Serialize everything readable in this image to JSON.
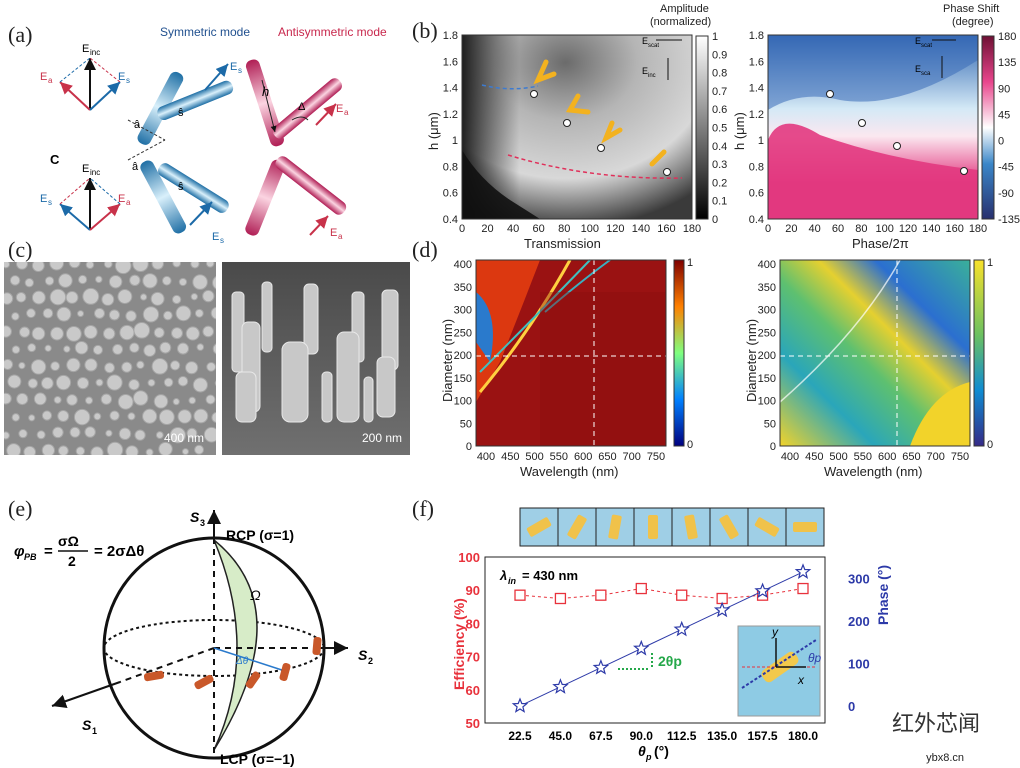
{
  "labels": {
    "a": "(a)",
    "b": "(b)",
    "c": "(c)",
    "d": "(d)",
    "e": "(e)",
    "f": "(f)"
  },
  "panel_a": {
    "symmetric_title": "Symmetric mode",
    "antisymmetric_title": "Antisymmetric mode",
    "e_inc": "E",
    "e_inc_sub": "inc",
    "e_a": "E",
    "e_a_sub": "a",
    "e_s": "E",
    "e_s_sub": "s",
    "c_label": "C",
    "a_hat": "â",
    "s_hat": "ŝ",
    "h": "h",
    "delta": "Δ",
    "colors": {
      "symmetric": "#3a8fc4",
      "antisymmetric": "#cc2a62"
    }
  },
  "panel_b": {
    "amp_title": "Amplitude",
    "amp_subtitle": "(normalized)",
    "phase_title": "Phase Shift",
    "phase_subtitle": "(degree)",
    "ylabel": "h (μm)",
    "yticks": [
      "1.8",
      "1.6",
      "1.4",
      "1.2",
      "1",
      "0.8",
      "0.6",
      "0.4"
    ],
    "xticks": [
      "0",
      "20",
      "40",
      "60",
      "80",
      "100",
      "120",
      "140",
      "160",
      "180"
    ],
    "amp_cbar": [
      "1",
      "0.9",
      "0.8",
      "0.7",
      "0.6",
      "0.5",
      "0.4",
      "0.3",
      "0.2",
      "0.1",
      "0"
    ],
    "phase_cbar": [
      "180",
      "135",
      "90",
      "45",
      "0",
      "-45",
      "-90",
      "-135"
    ],
    "e_scat": "E",
    "e_scat_sub": "scat",
    "e_inc": "E",
    "e_inc_sub": "inc",
    "e_sca_sub": "sca"
  },
  "panel_c": {
    "scale1": "400 nm",
    "scale2": "200 nm"
  },
  "panel_d": {
    "title_left": "Transmission",
    "title_right": "Phase/2π",
    "ylabel": "Diameter (nm)",
    "xlabel": "Wavelength (nm)",
    "yticks": [
      "400",
      "350",
      "300",
      "250",
      "200",
      "150",
      "100",
      "50",
      "0"
    ],
    "xticks": [
      "400",
      "450",
      "500",
      "550",
      "600",
      "650",
      "700",
      "750"
    ],
    "cbar_top": "1",
    "cbar_bottom": "0"
  },
  "panel_e": {
    "formula_lhs": "φ",
    "formula_sub": "PB",
    "formula": "= σΩ/2 = 2σΔθ",
    "formula_num": "σΩ",
    "formula_den": "2",
    "formula_rhs": "= 2σΔθ",
    "s1": "S",
    "s1_sub": "1",
    "s2": "S",
    "s2_sub": "2",
    "s3": "S",
    "s3_sub": "3",
    "rcp": "RCP (σ=1)",
    "lcp": "LCP (σ=−1)",
    "omega": "Ω",
    "dtheta": "Δθ"
  },
  "chart_data": {
    "type": "line",
    "annotation": "λin = 430 nm",
    "annotation_sym": "λ",
    "annotation_sub": "in",
    "annotation_val": "= 430 nm",
    "xlabel": "θp (°)",
    "xlabel_sym": "θ",
    "xlabel_sub": "p",
    "xlabel_unit": "(°)",
    "ylabel_left": "Efficiency (%)",
    "ylabel_right": "Phase (°)",
    "categories": [
      "22.5",
      "45.0",
      "67.5",
      "90.0",
      "112.5",
      "135.0",
      "157.5",
      "180.0"
    ],
    "ylim_left": [
      50,
      100
    ],
    "ylim_right": [
      -40,
      350
    ],
    "yticks_left": [
      "100",
      "90",
      "80",
      "70",
      "60",
      "50"
    ],
    "yticks_right": [
      "300",
      "200",
      "100",
      "0"
    ],
    "series": [
      {
        "axis": "left",
        "marker": "square",
        "color": "#e8323c",
        "values": [
          88.5,
          87.5,
          88.5,
          90.5,
          88.5,
          87.5,
          88.5,
          90.5
        ]
      },
      {
        "axis": "right",
        "marker": "star",
        "color": "#2d3aa8",
        "values": [
          0,
          45,
          90,
          135,
          180,
          225,
          270,
          315
        ]
      }
    ],
    "two_theta": "2θp",
    "inset_x": "x",
    "inset_y": "y",
    "inset_theta": "θp"
  },
  "watermark": {
    "brand": "红外芯闻",
    "site": "ybx8.cn"
  }
}
